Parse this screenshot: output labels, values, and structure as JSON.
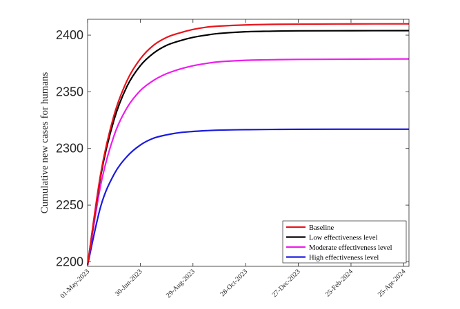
{
  "chart_data": {
    "type": "line",
    "title": "",
    "xlabel": "",
    "ylabel": "Cumulative new cases for humans",
    "x_ticks": [
      "01-May-2023",
      "30-Jun-2023",
      "29-Aug-2023",
      "28-Oct-2023",
      "27-Dec-2023",
      "25-Feb-2024",
      "25-Apr-2024"
    ],
    "y_ticks": [
      "2200",
      "2250",
      "2300",
      "2350",
      "2400"
    ],
    "xlim": [
      "2023-05-01",
      "2024-05-01"
    ],
    "ylim": [
      2196,
      2414
    ],
    "grid": false,
    "legend_position": "bottom-right",
    "x": [
      "2023-05-01",
      "2023-05-16",
      "2023-05-31",
      "2023-06-15",
      "2023-06-30",
      "2023-07-15",
      "2023-07-30",
      "2023-08-14",
      "2023-08-29",
      "2023-09-13",
      "2023-09-28",
      "2023-10-28",
      "2023-11-27",
      "2023-12-27",
      "2024-02-25",
      "2024-05-01"
    ],
    "series": [
      {
        "name": "Baseline",
        "color": "#e8141c",
        "values": [
          2197,
          2278,
          2329,
          2360,
          2379,
          2391,
          2398,
          2402,
          2405,
          2407,
          2408,
          2409,
          2409.5,
          2409.7,
          2409.9,
          2410
        ]
      },
      {
        "name": "Low effectiveness level",
        "color": "#000000",
        "values": [
          2197,
          2276,
          2325,
          2355,
          2373,
          2384,
          2391,
          2395,
          2398,
          2400,
          2401.5,
          2403,
          2403.5,
          2403.8,
          2403.9,
          2404
        ]
      },
      {
        "name": "Moderate effectiveness level",
        "color": "#ee1cee",
        "values": [
          2197,
          2268,
          2311,
          2336,
          2351,
          2360,
          2366,
          2370,
          2373,
          2375,
          2376.5,
          2377.8,
          2378.3,
          2378.6,
          2378.8,
          2379
        ]
      },
      {
        "name": "High effectiveness level",
        "color": "#1a1ae0",
        "values": [
          2197,
          2249,
          2277,
          2293,
          2303,
          2309,
          2312,
          2314,
          2315,
          2315.7,
          2316.2,
          2316.6,
          2316.8,
          2316.9,
          2317,
          2317
        ]
      }
    ]
  }
}
